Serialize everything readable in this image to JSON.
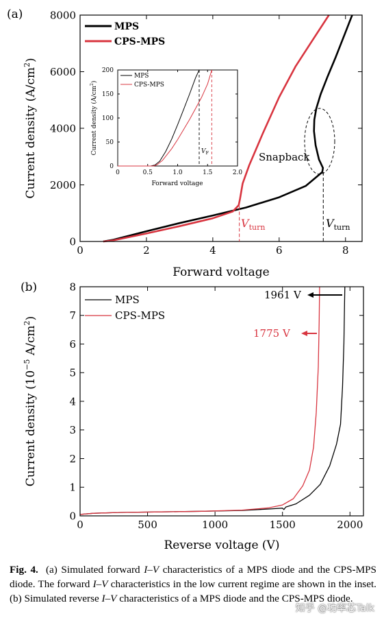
{
  "chart_data": [
    {
      "type": "line",
      "panel_label": "(a)",
      "xlabel": "Forward voltage",
      "ylabel_main": "Current density (A/cm",
      "ylabel_sup": "2",
      "ylabel_end": ")",
      "xlim": [
        0,
        8.5
      ],
      "ylim": [
        0,
        8000
      ],
      "xticks": [
        0,
        2,
        4,
        6,
        8
      ],
      "yticks": [
        0,
        2000,
        4000,
        6000,
        8000
      ],
      "grid": false,
      "legend_position": "top-left",
      "colors": {
        "MPS": "#000000",
        "CPS-MPS": "#d8343f"
      },
      "series": [
        {
          "name": "MPS",
          "color": "#000000",
          "x": [
            0.7,
            1.0,
            2.0,
            3.0,
            4.0,
            5.0,
            6.0,
            6.8,
            7.3,
            7.32,
            7.2,
            7.1,
            7.05,
            7.06,
            7.12,
            7.25,
            7.45,
            7.7,
            8.0,
            8.2
          ],
          "y": [
            0,
            60,
            360,
            650,
            920,
            1200,
            1560,
            1960,
            2450,
            2600,
            2900,
            3400,
            3900,
            4300,
            4700,
            5200,
            5800,
            6500,
            7400,
            8000
          ]
        },
        {
          "name": "CPS-MPS",
          "color": "#d8343f",
          "x": [
            0.7,
            1.0,
            2.0,
            3.0,
            4.0,
            4.6,
            4.78,
            4.82,
            4.9,
            5.1,
            5.5,
            6.0,
            6.5,
            7.0,
            7.5
          ],
          "y": [
            0,
            40,
            280,
            540,
            820,
            1060,
            1280,
            1500,
            2050,
            2700,
            3800,
            5100,
            6200,
            7100,
            8000
          ]
        }
      ],
      "annotations": {
        "snapback": "Snapback",
        "vturn_main": "V",
        "vturn_sub": "turn",
        "vturn_cps_x": 4.8,
        "vturn_mps_x": 7.33
      },
      "inset": {
        "xlabel": "Forward voltage",
        "ylabel_main": "Current density (A/cm",
        "ylabel_sup": "2",
        "ylabel_end": ")",
        "xlim": [
          0,
          2.0
        ],
        "ylim": [
          0,
          200
        ],
        "xticks": [
          "0",
          "0.5",
          "1.0",
          "1.5",
          "2.0"
        ],
        "xtick_values": [
          0,
          0.5,
          1.0,
          1.5,
          2.0
        ],
        "yticks": [
          0,
          50,
          100,
          150,
          200
        ],
        "vf_main": "V",
        "vf_sub": "F",
        "vf_mps_x": 1.36,
        "vf_cps_x": 1.57,
        "series": [
          {
            "name": "MPS",
            "color": "#000000",
            "x": [
              0.0,
              0.55,
              0.62,
              0.7,
              0.8,
              0.9,
              1.0,
              1.1,
              1.2,
              1.3,
              1.36
            ],
            "y": [
              0,
              0,
              2,
              10,
              30,
              56,
              86,
              118,
              150,
              184,
              200
            ]
          },
          {
            "name": "CPS-MPS",
            "color": "#d8343f",
            "x": [
              0.0,
              0.6,
              0.66,
              0.75,
              0.9,
              1.0,
              1.1,
              1.2,
              1.3,
              1.4,
              1.5,
              1.57
            ],
            "y": [
              0,
              0,
              3,
              12,
              36,
              55,
              76,
              97,
              120,
              143,
              171,
              200
            ]
          }
        ]
      }
    },
    {
      "type": "line",
      "panel_label": "(b)",
      "xlabel": "Reverse voltage (V)",
      "ylabel_main": "Current density (10",
      "ylabel_exp": "−5",
      "ylabel_mid": " A/cm",
      "ylabel_sup": "2",
      "ylabel_end": ")",
      "xlim": [
        0,
        2100
      ],
      "ylim": [
        0,
        8
      ],
      "xticks": [
        0,
        500,
        1000,
        1500,
        2000
      ],
      "yticks": [
        0,
        1,
        2,
        3,
        4,
        5,
        6,
        7,
        8
      ],
      "grid": false,
      "legend_position": "top-left",
      "series": [
        {
          "name": "MPS",
          "color": "#000000",
          "x": [
            0,
            100,
            300,
            600,
            900,
            1200,
            1400,
            1500,
            1510,
            1525,
            1600,
            1700,
            1780,
            1850,
            1900,
            1930,
            1945,
            1955,
            1960,
            1962
          ],
          "y": [
            0.05,
            0.09,
            0.12,
            0.14,
            0.16,
            0.19,
            0.24,
            0.27,
            0.22,
            0.31,
            0.42,
            0.72,
            1.1,
            1.75,
            2.5,
            3.2,
            4.5,
            6.0,
            7.5,
            8.0
          ]
        },
        {
          "name": "CPS-MPS",
          "color": "#d8343f",
          "x": [
            0,
            100,
            300,
            600,
            900,
            1200,
            1400,
            1500,
            1580,
            1650,
            1700,
            1730,
            1750,
            1765,
            1772,
            1775
          ],
          "y": [
            0.05,
            0.09,
            0.12,
            0.14,
            0.16,
            0.2,
            0.28,
            0.38,
            0.6,
            1.05,
            1.6,
            2.4,
            3.6,
            5.2,
            6.8,
            8.0
          ]
        }
      ],
      "annotations": {
        "mps_breakdown": "1961 V",
        "cps_breakdown": "1775 V",
        "mps_breakdown_x": 1961,
        "cps_breakdown_x": 1775
      }
    }
  ],
  "caption": {
    "fig_label": "Fig. 4.",
    "p1": "(a) Simulated forward ",
    "iv1": "I–V",
    "p2": " characteristics of a MPS diode and the CPS-MPS diode. The forward ",
    "iv2": "I–V",
    "p3": " characteristics in the low current regime are shown in the inset. (b) Simulated reverse ",
    "iv3": "I–V",
    "p4": " characteristics of a MPS diode and the CPS-MPS diode."
  },
  "watermark": "知乎 @功率芯Talk"
}
